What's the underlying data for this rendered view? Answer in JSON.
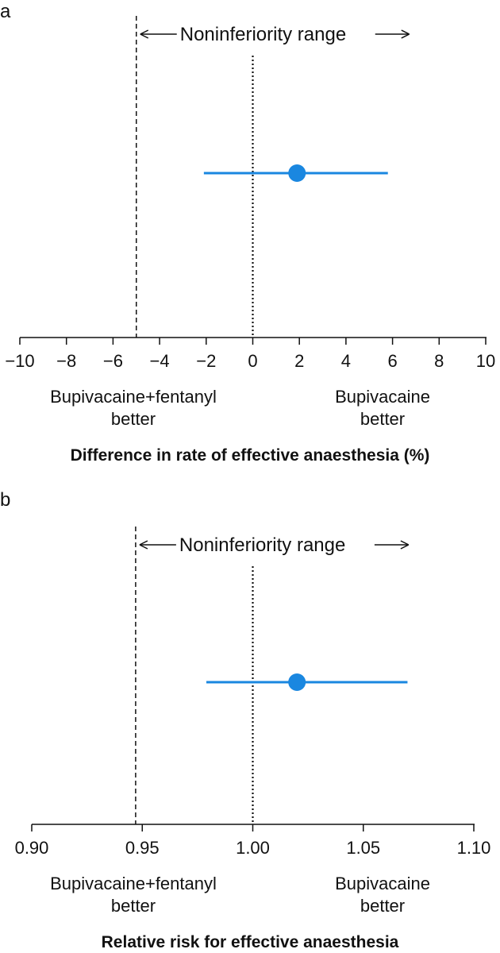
{
  "colors": {
    "estimate": "#1a87e0",
    "axis": "#111111"
  },
  "chart_data": [
    {
      "type": "forest",
      "panel": "a",
      "xlabel": "Difference in rate of effective anaesthesia (%)",
      "xlim": [
        -10,
        10
      ],
      "ticks": [
        -10,
        -8,
        -6,
        -4,
        -2,
        0,
        2,
        4,
        6,
        8,
        10
      ],
      "tick_labels": [
        "−10",
        "−8",
        "−6",
        "−4",
        "−2",
        "0",
        "2",
        "4",
        "6",
        "8",
        "10"
      ],
      "estimate": 1.9,
      "ci": [
        -2.1,
        5.8
      ],
      "null_value": 0,
      "margin": -5,
      "range_label": "Noninferiority range",
      "left_label": [
        "Bupivacaine+fentanyl",
        "better"
      ],
      "right_label": [
        "Bupivacaine",
        "better"
      ]
    },
    {
      "type": "forest",
      "panel": "b",
      "xlabel": "Relative risk for effective anaesthesia",
      "xlim": [
        0.9,
        1.1
      ],
      "ticks": [
        0.9,
        0.95,
        1.0,
        1.05,
        1.1
      ],
      "tick_labels": [
        "0.90",
        "0.95",
        "1.00",
        "1.05",
        "1.10"
      ],
      "estimate": 1.02,
      "ci": [
        0.979,
        1.07
      ],
      "null_value": 1.0,
      "margin": 0.947,
      "range_label": "Noninferiority range",
      "left_label": [
        "Bupivacaine+fentanyl",
        "better"
      ],
      "right_label": [
        "Bupivacaine",
        "better"
      ]
    }
  ]
}
